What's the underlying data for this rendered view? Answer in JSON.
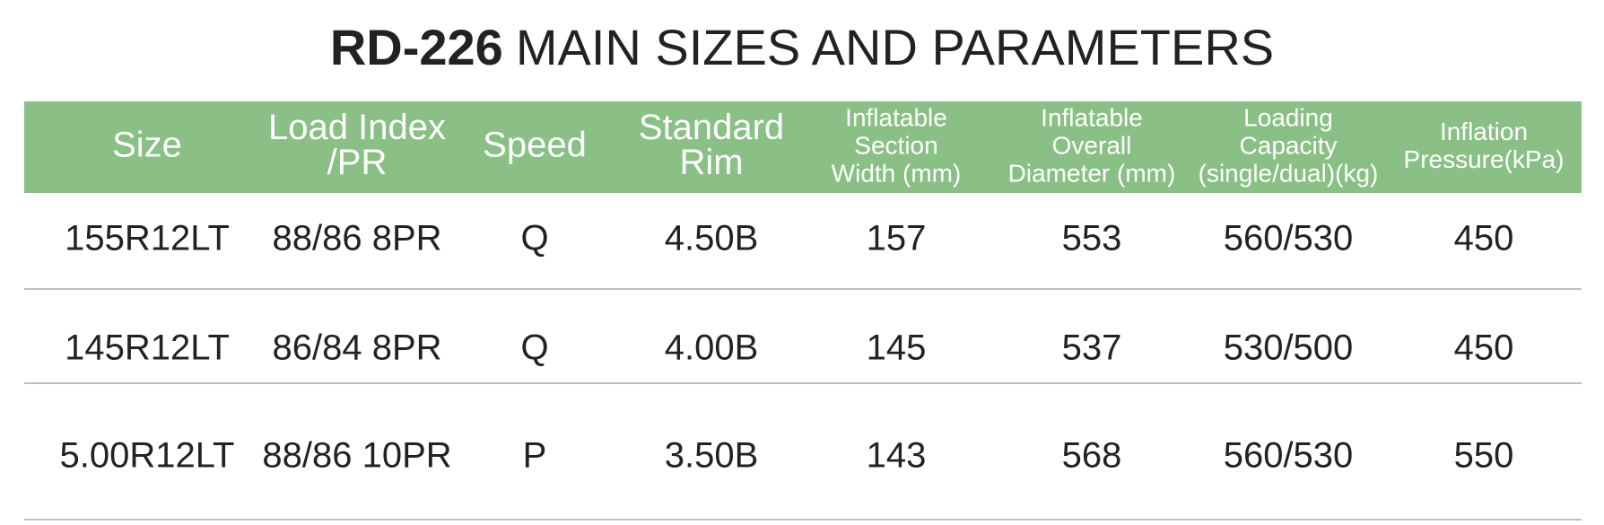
{
  "title": {
    "model": "RD-226",
    "text": "MAIN SIZES AND PARAMETERS"
  },
  "table": {
    "header": [
      [
        "Size"
      ],
      [
        "Load Index",
        "/PR"
      ],
      [
        "Speed"
      ],
      [
        "Standard",
        "Rim"
      ],
      [
        "Inflatable",
        "Section",
        "Width (mm)"
      ],
      [
        "Inflatable",
        "Overall",
        "Diameter (mm)"
      ],
      [
        "Loading",
        "Capacity",
        "(single/dual)(kg)"
      ],
      [
        "Inflation",
        "Pressure(kPa)"
      ]
    ],
    "rows": [
      [
        "155R12LT",
        "88/86 8PR",
        "Q",
        "4.50B",
        "157",
        "553",
        "560/530",
        "450"
      ],
      [
        "145R12LT",
        "86/84 8PR",
        "Q",
        "4.00B",
        "145",
        "537",
        "530/500",
        "450"
      ],
      [
        "5.00R12LT",
        "88/86 10PR",
        "P",
        "3.50B",
        "143",
        "568",
        "560/530",
        "550"
      ]
    ]
  }
}
